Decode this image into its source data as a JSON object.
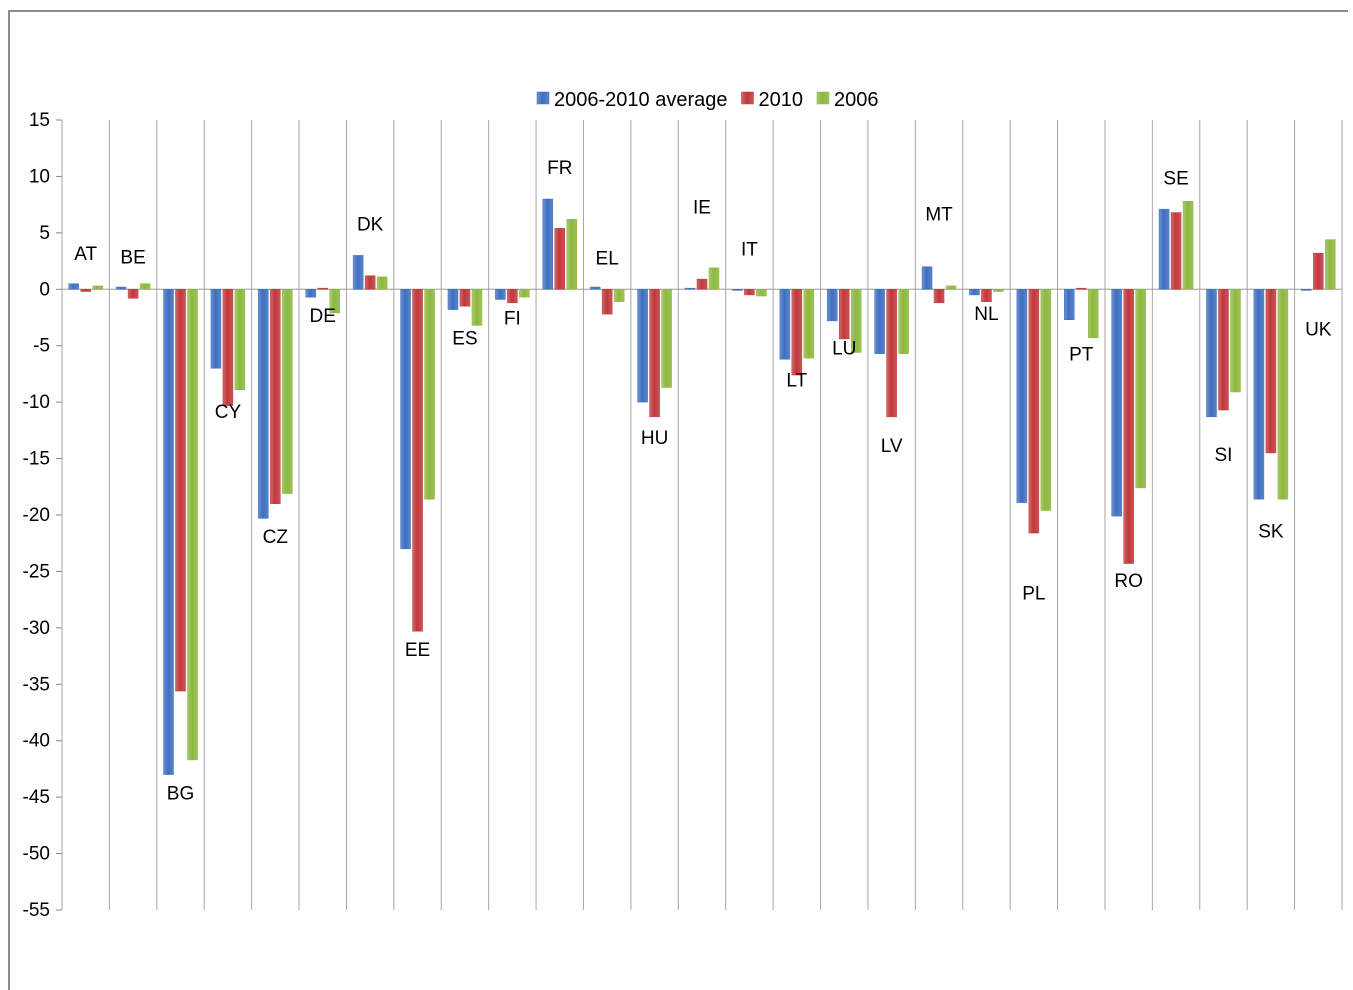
{
  "chart_data": {
    "type": "bar",
    "title": "",
    "xlabel": "",
    "ylabel": "",
    "ylim": [
      -55,
      15
    ],
    "yticks": [
      15,
      10,
      5,
      0,
      -5,
      -10,
      -15,
      -20,
      -25,
      -30,
      -35,
      -40,
      -45,
      -50,
      -55
    ],
    "grid": "vertical separators between categories",
    "legend_position": "top-center",
    "categories": [
      "AT",
      "BE",
      "BG",
      "CY",
      "CZ",
      "DE",
      "DK",
      "EE",
      "ES",
      "FI",
      "FR",
      "EL",
      "HU",
      "IE",
      "IT",
      "LT",
      "LU",
      "LV",
      "MT",
      "NL",
      "PL",
      "PT",
      "RO",
      "SE",
      "SI",
      "SK",
      "UK"
    ],
    "series": [
      {
        "name": "2006-2010 average",
        "color": "#3d6fc0",
        "values": [
          0.5,
          0.2,
          -43.0,
          -7.0,
          -20.3,
          -0.7,
          3.0,
          -23.0,
          -1.8,
          -0.9,
          8.0,
          0.2,
          -10.0,
          0.1,
          -0.1,
          -6.2,
          -2.8,
          -5.7,
          2.0,
          -0.5,
          -18.9,
          -2.7,
          -20.1,
          7.1,
          -11.3,
          -18.6,
          -0.1
        ]
      },
      {
        "name": "2010",
        "color": "#c0383a",
        "values": [
          -0.2,
          -0.8,
          -35.6,
          -10.3,
          -19.0,
          0.1,
          1.2,
          -30.3,
          -1.5,
          -1.2,
          5.4,
          -2.2,
          -11.3,
          0.9,
          -0.5,
          -7.6,
          -4.4,
          -11.3,
          -1.2,
          -1.1,
          -21.6,
          0.1,
          -24.3,
          6.8,
          -10.7,
          -14.5,
          3.2
        ]
      },
      {
        "name": "2006",
        "color": "#8cb83d",
        "values": [
          0.3,
          0.5,
          -41.7,
          -8.9,
          -18.1,
          -2.1,
          1.1,
          -18.6,
          -3.2,
          -0.7,
          6.2,
          -1.1,
          -8.7,
          1.9,
          -0.6,
          -6.1,
          -5.6,
          -5.7,
          0.3,
          -0.2,
          -19.6,
          -4.3,
          -17.6,
          7.8,
          -9.1,
          -18.6,
          4.4
        ]
      }
    ],
    "category_label_y": [
      2.6,
      2.3,
      -45.2,
      -11.4,
      -22.5,
      -2.9,
      5.2,
      -32.5,
      -4.9,
      -3.1,
      10.2,
      2.2,
      -13.7,
      6.7,
      3.0,
      -8.6,
      -5.8,
      -14.4,
      6.1,
      -2.7,
      -27.5,
      -6.3,
      -26.4,
      9.3,
      -15.2,
      -22.0,
      -4.1
    ]
  }
}
